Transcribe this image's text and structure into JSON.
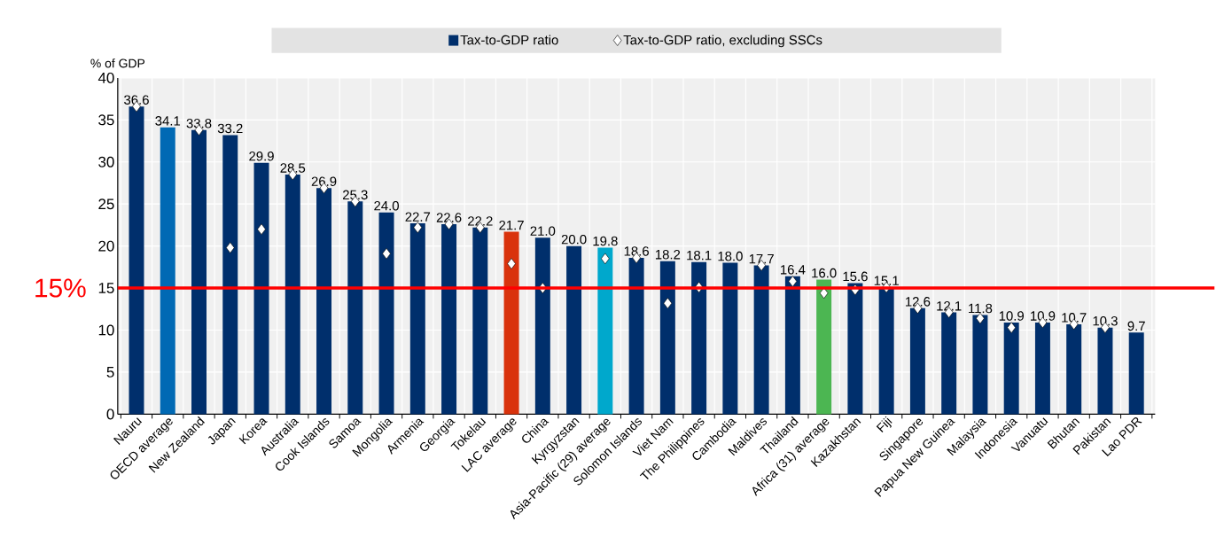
{
  "chart_data": {
    "type": "bar",
    "ylabel": "% of GDP",
    "categories": [
      "Nauru",
      "OECD average",
      "New Zealand",
      "Japan",
      "Korea",
      "Australia",
      "Cook Islands",
      "Samoa",
      "Mongolia",
      "Armenia",
      "Georgia",
      "Tokelau",
      "LAC average",
      "China",
      "Kyrgyzstan",
      "Asia-Pacific (29) average",
      "Solomon Islands",
      "Viet Nam",
      "The Philippines",
      "Cambodia",
      "Maldives",
      "Thailand",
      "Africa (31) average",
      "Kazakhstan",
      "Fiji",
      "Singapore",
      "Papua New Guinea",
      "Malaysia",
      "Indonesia",
      "Vanuatu",
      "Bhutan",
      "Pakistan",
      "Lao PDR"
    ],
    "series": [
      {
        "name": "Tax-to-GDP ratio",
        "color": "#002f6c",
        "colors": [
          "#002f6c",
          "#0069b4",
          "#002f6c",
          "#002f6c",
          "#002f6c",
          "#002f6c",
          "#002f6c",
          "#002f6c",
          "#002f6c",
          "#002f6c",
          "#002f6c",
          "#002f6c",
          "#d9320c",
          "#002f6c",
          "#002f6c",
          "#00a8cc",
          "#002f6c",
          "#002f6c",
          "#002f6c",
          "#002f6c",
          "#002f6c",
          "#002f6c",
          "#4cb652",
          "#002f6c",
          "#002f6c",
          "#002f6c",
          "#002f6c",
          "#002f6c",
          "#002f6c",
          "#002f6c",
          "#002f6c",
          "#002f6c",
          "#002f6c"
        ],
        "values": [
          36.6,
          34.1,
          33.8,
          33.2,
          29.9,
          28.5,
          26.9,
          25.3,
          24.0,
          22.7,
          22.6,
          22.2,
          21.7,
          21.0,
          20.0,
          19.8,
          18.6,
          18.2,
          18.1,
          18.0,
          17.7,
          16.4,
          16.0,
          15.6,
          15.1,
          12.6,
          12.1,
          11.8,
          10.9,
          10.9,
          10.7,
          10.3,
          9.7
        ],
        "value_labels": [
          "36.6",
          "34.1",
          "33.8",
          "33.2",
          "29.9",
          "28.5",
          "26.9",
          "25.3",
          "24.0",
          "22.7",
          "22.6",
          "22.2",
          "21.7",
          "21.0",
          "20.0",
          "19.8",
          "18.6",
          "18.2",
          "18.1",
          "18.0",
          "17.7",
          "16.4",
          "16.0",
          "15.6",
          "15.1",
          "12.6",
          "12.1",
          "11.8",
          "10.9",
          "10.9",
          "10.7",
          "10.3",
          "9.7"
        ]
      },
      {
        "name": "Tax-to-GDP ratio, excluding SSCs",
        "type": "scatter",
        "color": "#ffffff",
        "marker": "diamond",
        "values": [
          36.6,
          null,
          33.8,
          19.8,
          22.0,
          28.5,
          26.9,
          25.3,
          19.1,
          22.2,
          22.6,
          22.2,
          17.9,
          15.0,
          null,
          18.5,
          18.6,
          13.2,
          15.1,
          null,
          17.7,
          15.8,
          14.4,
          14.8,
          15.1,
          12.6,
          12.1,
          11.4,
          10.3,
          10.9,
          10.7,
          10.3,
          null
        ]
      }
    ],
    "ylim": [
      0,
      40
    ],
    "yticks": [
      0,
      5,
      10,
      15,
      20,
      25,
      30,
      35,
      40
    ],
    "grid": true,
    "legend": "top",
    "ref_lines": [
      {
        "axis": "y",
        "value": 15,
        "label": "15%",
        "color": "#ff0000"
      }
    ]
  }
}
